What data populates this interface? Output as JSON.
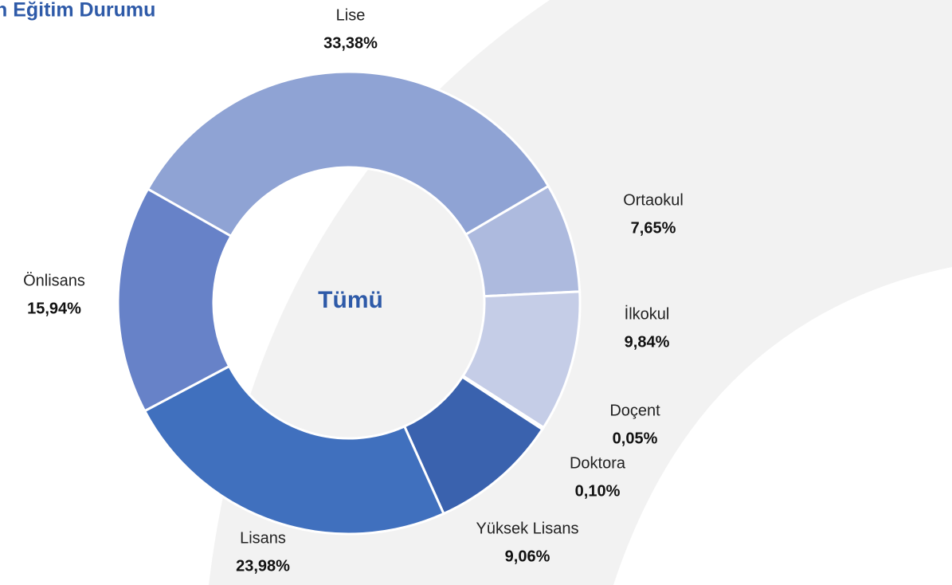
{
  "chart_data": {
    "type": "donut",
    "title": "n Eğitim Durumu",
    "center_label": "Tümü",
    "categories": [
      "Lise",
      "Ortaokul",
      "İlkokul",
      "Doçent",
      "Doktora",
      "Yüksek Lisans",
      "Lisans",
      "Önlisans"
    ],
    "values": [
      33.38,
      7.65,
      9.84,
      0.05,
      0.1,
      9.06,
      23.98,
      15.94
    ],
    "value_labels": [
      "33,38%",
      "7,65%",
      "9,84%",
      "0,05%",
      "0,10%",
      "9,06%",
      "23,98%",
      "15,94%"
    ],
    "colors": [
      "#8fa3d4",
      "#adbade",
      "#c5cde7",
      "#2f4f8f",
      "#34589e",
      "#3a62ae",
      "#4070be",
      "#6782c8"
    ]
  }
}
